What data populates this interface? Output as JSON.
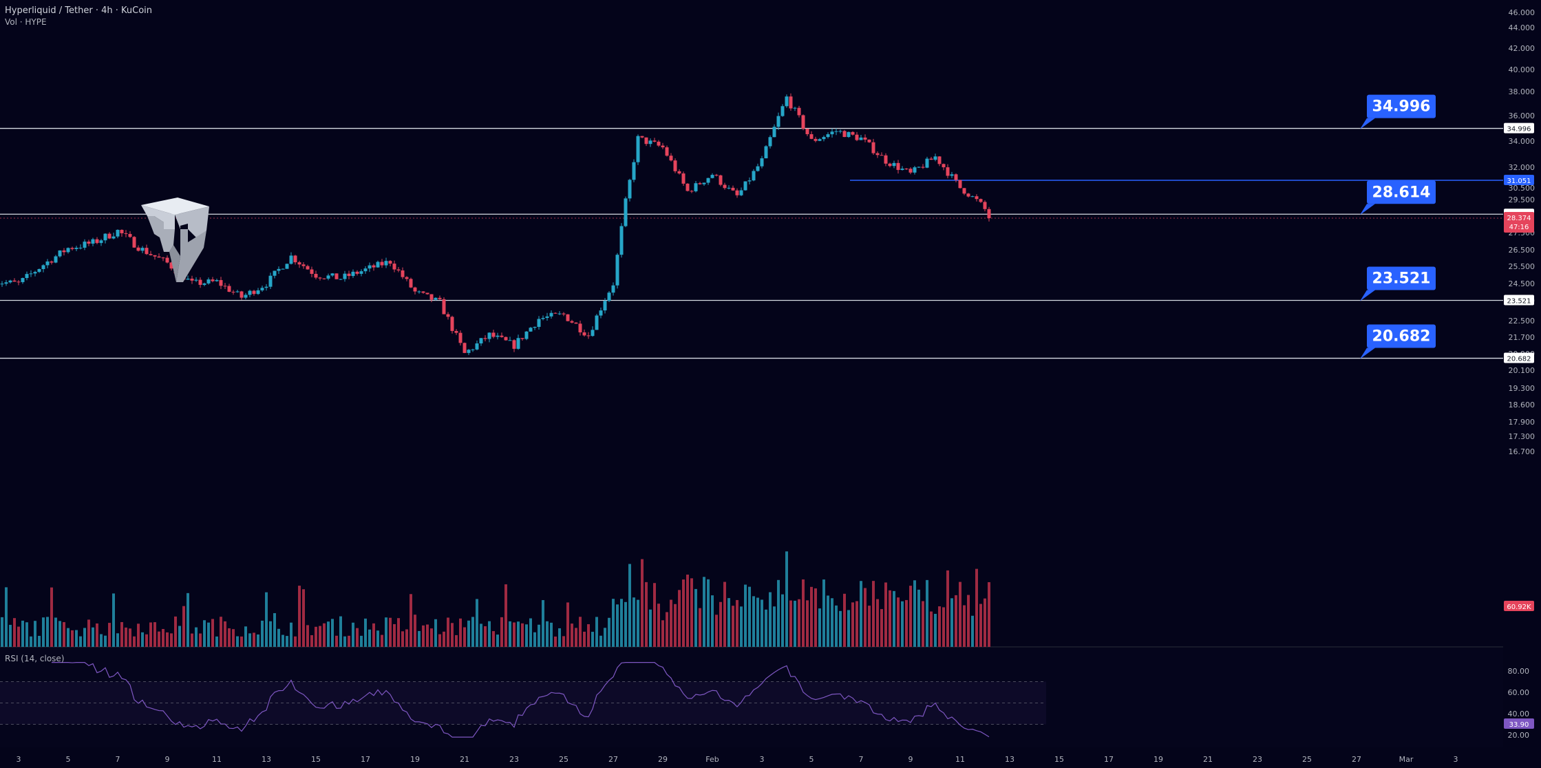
{
  "header": {
    "symbol_title": "Hyperliquid / Tether · 4h · KuCoin",
    "volume_label": "Vol · HYPE"
  },
  "rsi": {
    "title": "RSI (14, close)",
    "current": "33.90"
  },
  "badges": {
    "last_price": "28.374",
    "countdown": "47:16",
    "volume": "60.92K"
  },
  "colors": {
    "background": "#04041a",
    "up": "#26a6c8",
    "down": "#e5445c",
    "vol_up": "#1f7f9a",
    "vol_down": "#a02a42",
    "label_blue": "#2962ff",
    "level_31": "#2962ff",
    "rsi_line": "#7e57c2"
  },
  "chart_data": [
    {
      "type": "candlestick",
      "title": "Hyperliquid / Tether · 4h · KuCoin",
      "y_axis_ticks": [
        "46.000",
        "44.000",
        "42.000",
        "40.000",
        "38.000",
        "36.000",
        "34.000",
        "32.000",
        "30.500",
        "29.500",
        "27.500",
        "26.500",
        "25.500",
        "24.500",
        "23.500",
        "22.500",
        "21.700",
        "20.900",
        "20.100",
        "19.300",
        "18.600",
        "17.900",
        "17.300",
        "16.700"
      ],
      "x_axis_ticks": [
        "3",
        "5",
        "7",
        "9",
        "11",
        "13",
        "15",
        "17",
        "19",
        "21",
        "23",
        "25",
        "27",
        "29",
        "Feb",
        "3",
        "5",
        "7",
        "9",
        "11",
        "13",
        "15",
        "17",
        "19",
        "21",
        "23",
        "25",
        "27",
        "Mar",
        "3"
      ],
      "horizontal_levels": [
        {
          "value": 34.996,
          "label": "34.996",
          "axis_label": "34.996"
        },
        {
          "value": 28.614,
          "label": "28.614",
          "axis_label": "28.614"
        },
        {
          "value": 23.521,
          "label": "23.521",
          "axis_label": "23.521"
        },
        {
          "value": 20.682,
          "label": "20.682",
          "axis_label": "20.682"
        },
        {
          "value": 31.051,
          "axis_label": "31.051"
        }
      ],
      "price_path": [
        {
          "date": "Jan 2",
          "close": 24.6
        },
        {
          "date": "Jan 3",
          "close": 24.5
        },
        {
          "date": "Jan 4",
          "close": 25.6
        },
        {
          "date": "Jan 5",
          "close": 26.6
        },
        {
          "date": "Jan 6",
          "close": 26.9
        },
        {
          "date": "Jan 7",
          "close": 27.6
        },
        {
          "date": "Jan 8",
          "close": 26.5
        },
        {
          "date": "Jan 9",
          "close": 25.7
        },
        {
          "date": "Jan 10",
          "close": 24.5
        },
        {
          "date": "Jan 11",
          "close": 24.6
        },
        {
          "date": "Jan 12",
          "close": 23.7
        },
        {
          "date": "Jan 13",
          "close": 24.5
        },
        {
          "date": "Jan 14",
          "close": 26.1
        },
        {
          "date": "Jan 15",
          "close": 25.0
        },
        {
          "date": "Jan 16",
          "close": 24.8
        },
        {
          "date": "Jan 17",
          "close": 25.3
        },
        {
          "date": "Jan 18",
          "close": 25.8
        },
        {
          "date": "Jan 19",
          "close": 24.0
        },
        {
          "date": "Jan 20",
          "close": 23.4
        },
        {
          "date": "Jan 21",
          "close": 20.9
        },
        {
          "date": "Jan 22",
          "close": 21.8
        },
        {
          "date": "Jan 23",
          "close": 21.3
        },
        {
          "date": "Jan 24",
          "close": 22.6
        },
        {
          "date": "Jan 25",
          "close": 22.8
        },
        {
          "date": "Jan 26",
          "close": 21.8
        },
        {
          "date": "Jan 27",
          "close": 24.5
        },
        {
          "date": "Jan 28",
          "close": 34.2
        },
        {
          "date": "Jan 29",
          "close": 33.5
        },
        {
          "date": "Jan 30",
          "close": 30.2
        },
        {
          "date": "Jan 31",
          "close": 31.5
        },
        {
          "date": "Feb 1",
          "close": 29.8
        },
        {
          "date": "Feb 2",
          "close": 32.5
        },
        {
          "date": "Feb 3",
          "close": 37.5
        },
        {
          "date": "Feb 4",
          "close": 34.0
        },
        {
          "date": "Feb 5",
          "close": 34.8
        },
        {
          "date": "Feb 6",
          "close": 34.2
        },
        {
          "date": "Feb 7",
          "close": 32.5
        },
        {
          "date": "Feb 8",
          "close": 31.5
        },
        {
          "date": "Feb 9",
          "close": 32.8
        },
        {
          "date": "Feb 10",
          "close": 30.5
        },
        {
          "date": "Feb 11",
          "close": 28.9
        },
        {
          "date": "Feb 11 (last)",
          "close": 28.374
        }
      ]
    },
    {
      "type": "line",
      "title": "RSI (14, close)",
      "y_axis_ticks": [
        "80.00",
        "60.00",
        "40.00",
        "20.00"
      ],
      "ylim": [
        15,
        90
      ],
      "bands": [
        70,
        50,
        30
      ],
      "last_value": 33.9
    }
  ]
}
